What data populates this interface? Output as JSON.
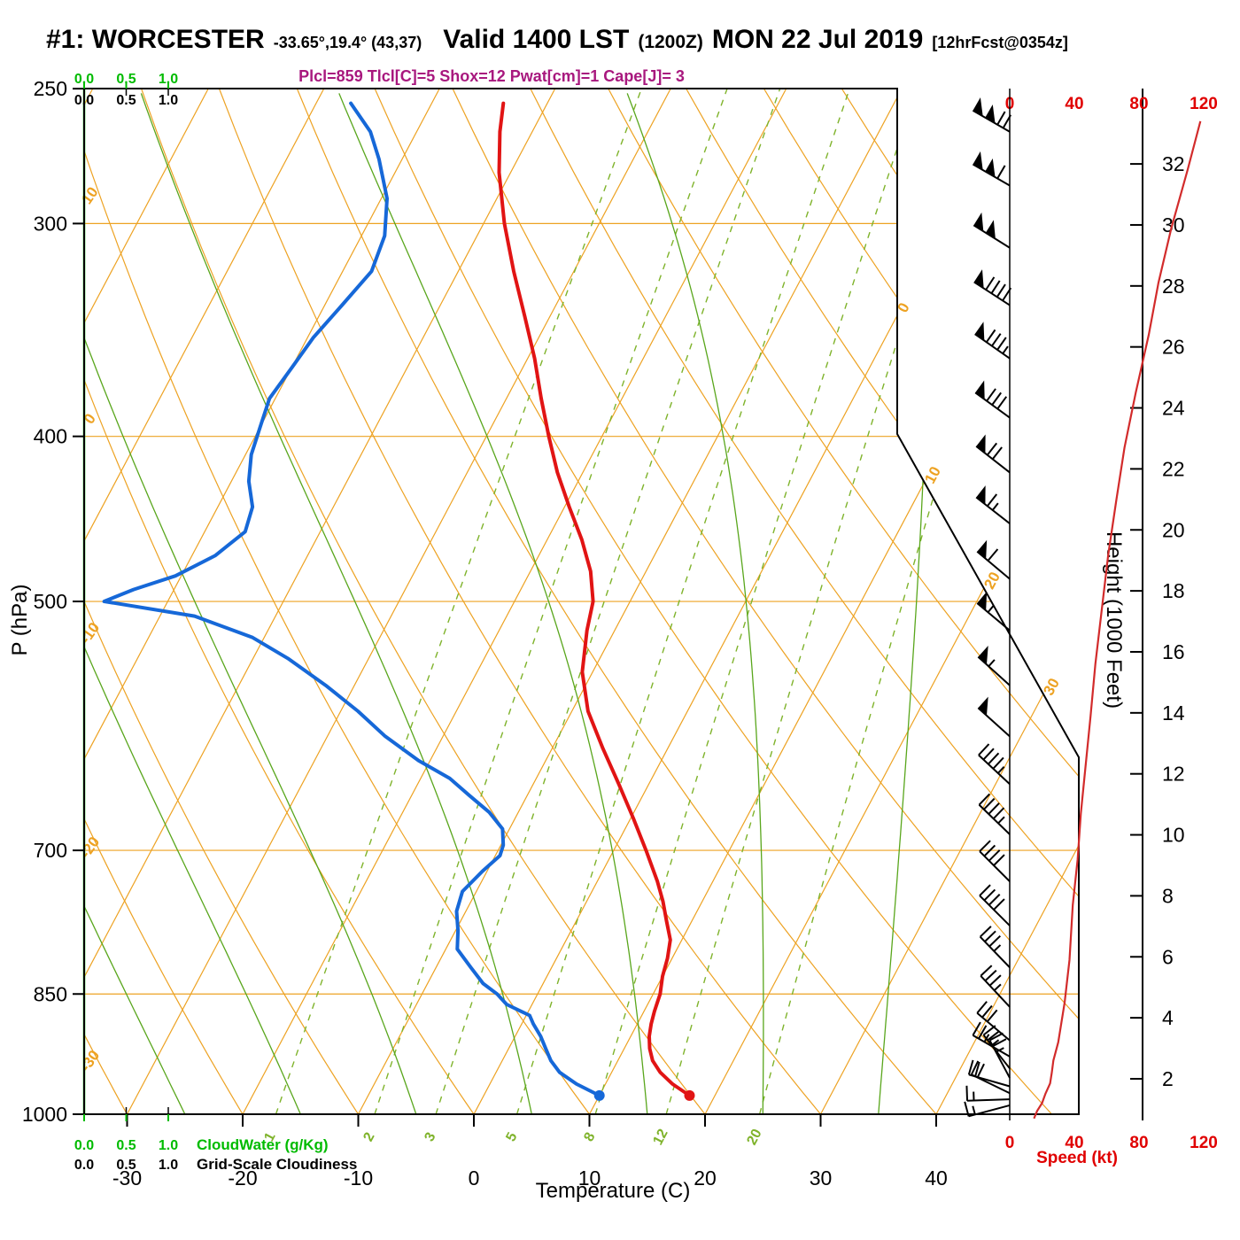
{
  "header": {
    "station_id": "#1: WORCESTER",
    "station_coords": "-33.65°,19.4° (43,37)",
    "valid_main": "Valid 1400 LST",
    "valid_z": "(1200Z)",
    "valid_date": "MON 22 Jul 2019",
    "fcst_tag": "[12hrFcst@0354z]",
    "stats": "Plcl=859 Tlcl[C]=5 Shox=12 Pwat[cm]=1 Cape[J]= 3"
  },
  "axes": {
    "pressure_label": "P (hPa)",
    "pressure_ticks": [
      250,
      300,
      400,
      500,
      700,
      850,
      1000
    ],
    "temp_label": "Temperature (C)",
    "temp_ticks": [
      -30,
      -20,
      -10,
      0,
      10,
      20,
      30,
      40
    ],
    "height_label": "Height (1000 Feet)",
    "height_ticks": [
      2,
      4,
      6,
      8,
      10,
      12,
      14,
      16,
      18,
      20,
      22,
      24,
      26,
      28,
      30,
      32
    ],
    "speed_label": "Speed (kt)",
    "speed_ticks": [
      0,
      40,
      80,
      120
    ],
    "cloudwater_label": "CloudWater (g/Kg)",
    "cloudwater_ticks": [
      "0.0",
      "0.5",
      "1.0"
    ],
    "cloudiness_label": "Grid-Scale Cloudiness",
    "cloudiness_ticks": [
      "0.0",
      "0.5",
      "1.0"
    ]
  },
  "overlay_labels": {
    "dry_adiabats": [
      10,
      0,
      -10,
      -20,
      -30
    ],
    "isotherms": [
      0,
      10,
      20,
      30
    ],
    "mixing_ratio": [
      1,
      2,
      3,
      5,
      8,
      12,
      20
    ]
  },
  "colors": {
    "orange": "#EDA222",
    "green_solid": "#59A61C",
    "green_dashed": "#7FB32B",
    "green_axis": "#00BB00",
    "dewpoint": "#1668D8",
    "temperature": "#E11414",
    "speed_curve": "#D22B2B",
    "red_axis": "#E00000",
    "stats": "#A8187E",
    "black": "#000000"
  },
  "chart_data": {
    "type": "skewt-logp",
    "pressure_range_hpa": [
      1000,
      250
    ],
    "temp_range_c": [
      -35,
      42
    ],
    "skew": "isotherms tilt right with height",
    "temperature_profile": [
      [
        975,
        17.8
      ],
      [
        960,
        15.8
      ],
      [
        945,
        14.2
      ],
      [
        930,
        13.0
      ],
      [
        915,
        12.2
      ],
      [
        900,
        11.6
      ],
      [
        885,
        11.2
      ],
      [
        870,
        10.9
      ],
      [
        850,
        10.6
      ],
      [
        830,
        10.0
      ],
      [
        810,
        9.6
      ],
      [
        790,
        9.0
      ],
      [
        770,
        7.8
      ],
      [
        750,
        6.6
      ],
      [
        730,
        5.2
      ],
      [
        700,
        2.8
      ],
      [
        670,
        0.2
      ],
      [
        640,
        -2.6
      ],
      [
        610,
        -5.6
      ],
      [
        580,
        -8.6
      ],
      [
        550,
        -10.9
      ],
      [
        520,
        -12.4
      ],
      [
        500,
        -13.2
      ],
      [
        480,
        -14.8
      ],
      [
        460,
        -17.0
      ],
      [
        440,
        -19.6
      ],
      [
        420,
        -22.2
      ],
      [
        400,
        -24.6
      ],
      [
        380,
        -27.0
      ],
      [
        360,
        -29.4
      ],
      [
        340,
        -32.2
      ],
      [
        320,
        -35.2
      ],
      [
        300,
        -38.2
      ],
      [
        280,
        -41.0
      ],
      [
        265,
        -42.8
      ],
      [
        255,
        -43.8
      ]
    ],
    "dewpoint_profile": [
      [
        975,
        10.0
      ],
      [
        960,
        7.5
      ],
      [
        945,
        5.5
      ],
      [
        930,
        4.2
      ],
      [
        915,
        3.2
      ],
      [
        900,
        2.2
      ],
      [
        885,
        1.0
      ],
      [
        875,
        0.3
      ],
      [
        862,
        -2.2
      ],
      [
        850,
        -3.5
      ],
      [
        838,
        -5.2
      ],
      [
        820,
        -7.0
      ],
      [
        800,
        -9.0
      ],
      [
        780,
        -9.8
      ],
      [
        760,
        -10.8
      ],
      [
        740,
        -11.2
      ],
      [
        720,
        -10.4
      ],
      [
        705,
        -9.6
      ],
      [
        695,
        -9.8
      ],
      [
        680,
        -10.6
      ],
      [
        665,
        -12.5
      ],
      [
        650,
        -15.0
      ],
      [
        635,
        -17.5
      ],
      [
        620,
        -21.0
      ],
      [
        600,
        -25.0
      ],
      [
        580,
        -28.5
      ],
      [
        560,
        -32.5
      ],
      [
        540,
        -37.0
      ],
      [
        525,
        -41.0
      ],
      [
        510,
        -47.0
      ],
      [
        500,
        -55.5
      ],
      [
        492,
        -53.5
      ],
      [
        483,
        -50.5
      ],
      [
        470,
        -48.0
      ],
      [
        455,
        -46.5
      ],
      [
        440,
        -47.0
      ],
      [
        425,
        -48.5
      ],
      [
        410,
        -49.5
      ],
      [
        395,
        -50.0
      ],
      [
        380,
        -50.5
      ],
      [
        365,
        -50.0
      ],
      [
        350,
        -49.5
      ],
      [
        335,
        -48.5
      ],
      [
        320,
        -47.5
      ],
      [
        305,
        -48.0
      ],
      [
        290,
        -49.5
      ],
      [
        275,
        -52.0
      ],
      [
        265,
        -54.0
      ],
      [
        255,
        -57.0
      ]
    ],
    "surface_temperature_c": 17.8,
    "surface_dewpoint_c": 10.0,
    "surface_pressure_hpa": 975,
    "wind_profile": [
      [
        265,
        33.4,
        300,
        118
      ],
      [
        285,
        31.8,
        300,
        110
      ],
      [
        310,
        29.9,
        302,
        100
      ],
      [
        335,
        28.1,
        303,
        92
      ],
      [
        360,
        26.4,
        305,
        86
      ],
      [
        390,
        24.5,
        306,
        78
      ],
      [
        420,
        22.7,
        308,
        71
      ],
      [
        450,
        21.0,
        308,
        66
      ],
      [
        485,
        19.2,
        310,
        61
      ],
      [
        520,
        17.4,
        310,
        57
      ],
      [
        560,
        15.6,
        312,
        53
      ],
      [
        600,
        13.9,
        312,
        50
      ],
      [
        640,
        12.3,
        313,
        47
      ],
      [
        685,
        10.7,
        314,
        44
      ],
      [
        730,
        9.2,
        315,
        42
      ],
      [
        775,
        7.7,
        315,
        39
      ],
      [
        820,
        5.9,
        316,
        37
      ],
      [
        865,
        4.5,
        317,
        34
      ],
      [
        905,
        3.2,
        310,
        30
      ],
      [
        925,
        2.6,
        300,
        27
      ],
      [
        940,
        2.2,
        322,
        26
      ],
      [
        952,
        1.85,
        332,
        25
      ],
      [
        963,
        1.5,
        286,
        22
      ],
      [
        972,
        1.2,
        296,
        20
      ],
      [
        980,
        0.95,
        268,
        17
      ],
      [
        988,
        0.7,
        255,
        15
      ]
    ],
    "wind_profile_fields": [
      "pressure_hpa",
      "height_kft",
      "direction_deg",
      "speed_kt"
    ]
  }
}
